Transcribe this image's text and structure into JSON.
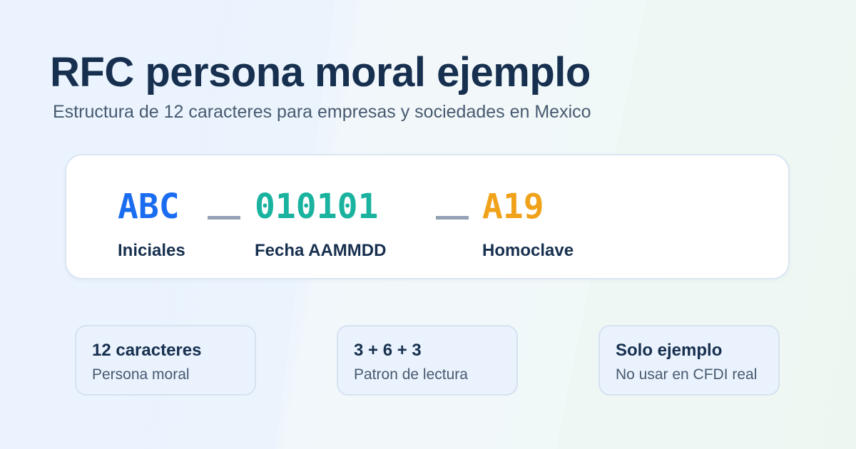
{
  "header": {
    "title": "RFC persona moral ejemplo",
    "subtitle": "Estructura de 12 caracteres para empresas y sociedades en Mexico"
  },
  "rfc": {
    "segments": [
      {
        "code": "ABC",
        "label": "Iniciales",
        "color": "#1a6cf0"
      },
      {
        "code": "010101",
        "label": "Fecha AAMMDD",
        "color": "#19b3a0"
      },
      {
        "code": "A19",
        "label": "Homoclave",
        "color": "#f0a21a"
      }
    ],
    "separator_color": "#93a1b4"
  },
  "info_cards": [
    {
      "title": "12 caracteres",
      "subtitle": "Persona moral"
    },
    {
      "title": "3 + 6 + 3",
      "subtitle": "Patron de lectura"
    },
    {
      "title": "Solo ejemplo",
      "subtitle": "No usar en CFDI real"
    }
  ],
  "colors": {
    "title_text": "#17304f",
    "subtitle_text": "#475a70",
    "card_background": "#ffffff",
    "info_card_background": "#eaf2fd"
  }
}
